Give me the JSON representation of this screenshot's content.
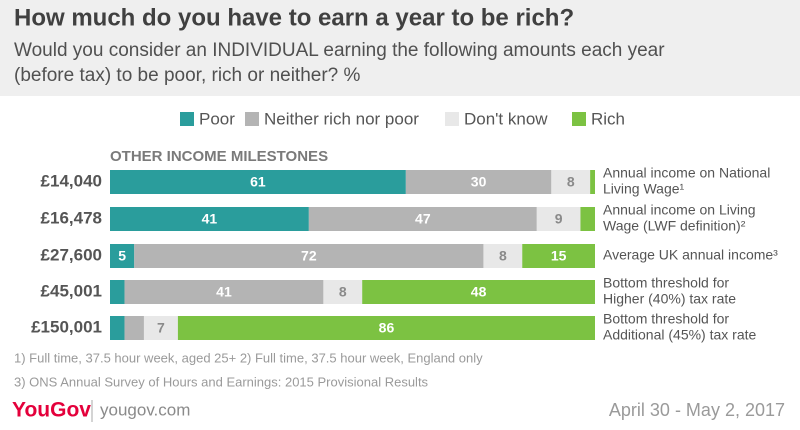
{
  "chart_data": {
    "type": "stacked-bar-horizontal",
    "title": "How much do you have to earn a year to be rich?",
    "subtitle": [
      "Would you consider an INDIVIDUAL earning the following amounts each year",
      "(before tax) to be poor, rich or neither? %"
    ],
    "section_label": "OTHER INCOME MILESTONES",
    "categories": [
      "£14,040",
      "£16,478",
      "£27,600",
      "£45,001",
      "£150,001"
    ],
    "row_notes": [
      [
        "Annual income on National",
        "Living Wage¹"
      ],
      [
        "Annual income on Living",
        "Wage (LWF definition)²"
      ],
      [
        "Average UK annual income³"
      ],
      [
        "Bottom threshold for",
        "Higher (40%) tax rate"
      ],
      [
        "Bottom threshold for",
        "Additional (45%) tax rate"
      ]
    ],
    "series": [
      {
        "name": "Poor",
        "color": "#2a9d9c",
        "label_color": "#ffffff",
        "values": [
          61,
          41,
          5,
          3,
          3
        ]
      },
      {
        "name": "Neither rich nor poor",
        "color": "#b4b4b4",
        "label_color": "#ffffff",
        "values": [
          30,
          47,
          72,
          41,
          4
        ]
      },
      {
        "name": "Don't know",
        "color": "#e8e8e8",
        "label_color": "#8a8a8a",
        "values": [
          8,
          9,
          8,
          8,
          7
        ]
      },
      {
        "name": "Rich",
        "color": "#7cc242",
        "label_color": "#ffffff",
        "values": [
          1,
          3,
          15,
          48,
          86
        ]
      }
    ],
    "footnotes": [
      "1) Full time, 37.5 hour week, aged 25+   2) Full time, 37.5 hour week, England only",
      "3) ONS Annual Survey of Hours and Earnings: 2015 Provisional Results"
    ],
    "brand": "YouGov",
    "website": "yougov.com",
    "date": "April 30 - May 2, 2017"
  }
}
